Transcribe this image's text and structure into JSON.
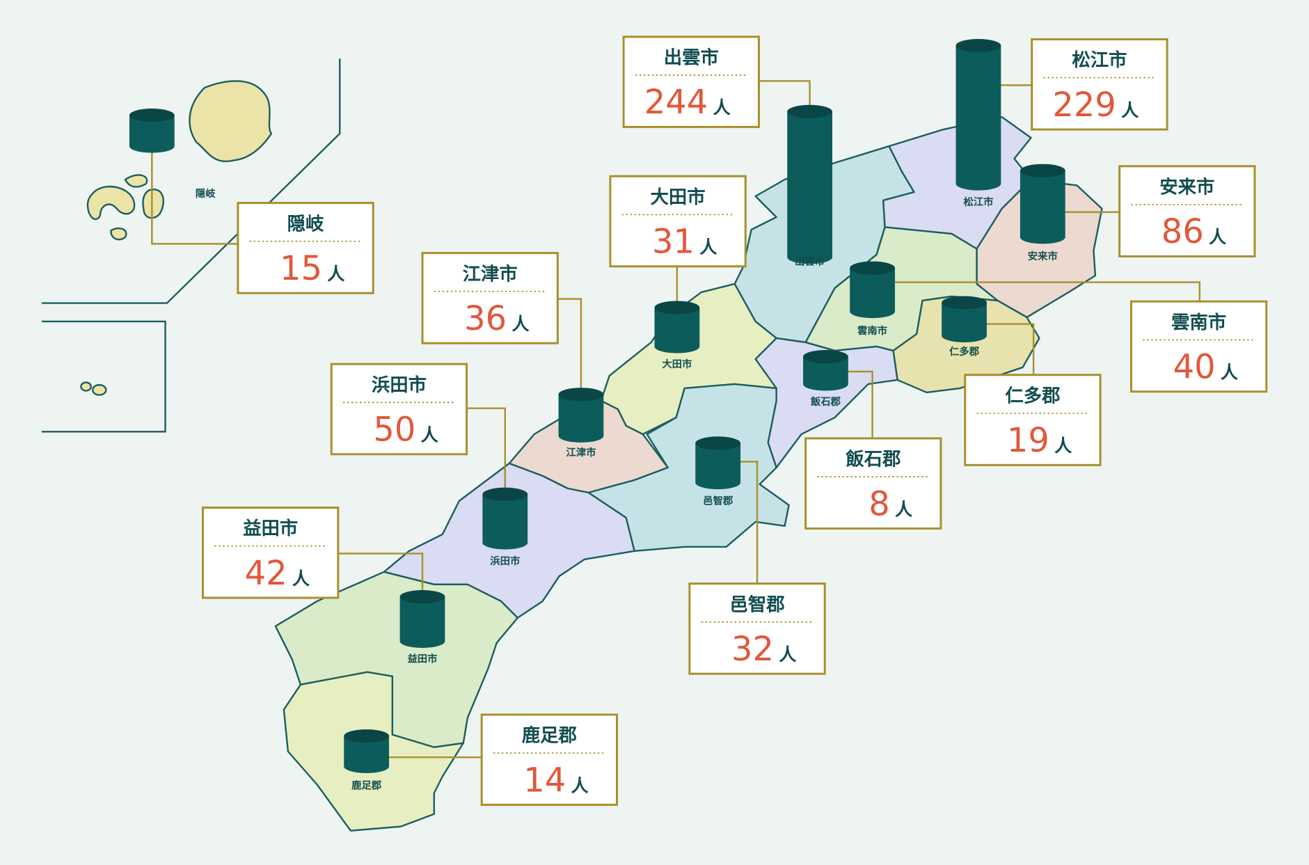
{
  "unit": "人",
  "regions": [
    {
      "name": "隠岐",
      "value": 15
    },
    {
      "name": "出雲市",
      "value": 244
    },
    {
      "name": "松江市",
      "value": 229
    },
    {
      "name": "安来市",
      "value": 86
    },
    {
      "name": "雲南市",
      "value": 40
    },
    {
      "name": "仁多郡",
      "value": 19
    },
    {
      "name": "飯石郡",
      "value": 8
    },
    {
      "name": "大田市",
      "value": 31
    },
    {
      "name": "江津市",
      "value": 36
    },
    {
      "name": "浜田市",
      "value": 50
    },
    {
      "name": "邑智郡",
      "value": 32
    },
    {
      "name": "益田市",
      "value": 42
    },
    {
      "name": "鹿足郡",
      "value": 14
    }
  ]
}
